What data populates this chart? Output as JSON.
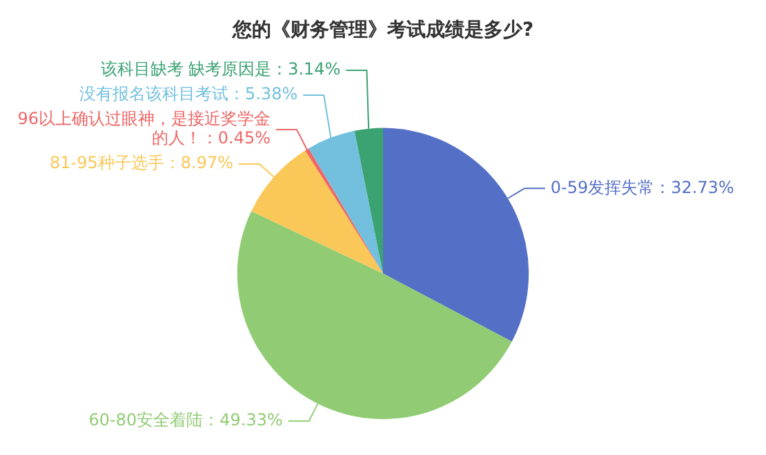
{
  "chart_data": {
    "type": "pie",
    "title": "您的《财务管理》考试成绩是多少?",
    "categories": [
      "0-59发挥失常",
      "60-80安全着陆",
      "81-95种子选手",
      "96以上确认过眼神，是接近奖学金的人！",
      "没有报名该科目考试",
      "该科目缺考 缺考原因是"
    ],
    "values": [
      32.73,
      49.33,
      8.97,
      0.45,
      5.38,
      3.14
    ],
    "value_labels": [
      "32.73%",
      "49.33%",
      "8.97%",
      "0.45%",
      "5.38%",
      "3.14%"
    ],
    "colors": [
      "#5470c6",
      "#91cc75",
      "#fac858",
      "#ee6666",
      "#73c0de",
      "#3ba272"
    ],
    "legend": false
  }
}
